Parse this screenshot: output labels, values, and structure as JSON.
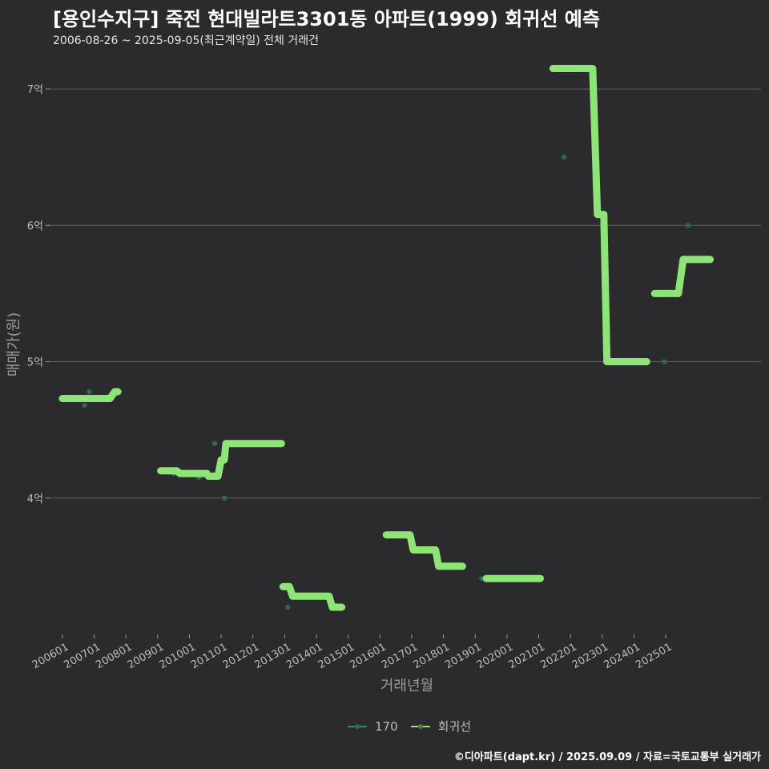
{
  "title": "[용인수지구] 죽전 현대빌라트3301동 아파트(1999) 회귀선 예측",
  "subtitle": "2006-08-26 ~ 2025-09-05(최근계약일) 전체 거래건",
  "footer": "©디아파트(dapt.kr) / 2025.09.09 / 자료=국토교통부 실거래가",
  "colors": {
    "background": "#2b2b2d",
    "grid": "#5f5f5f",
    "regression": "#8ee577",
    "points": "#2f6b5a",
    "legend_170": "#2a8c7f"
  },
  "chart_data": {
    "type": "line",
    "title": "[용인수지구] 죽전 현대빌라트3301동 아파트(1999) 회귀선 예측",
    "xlabel": "거래년월",
    "ylabel": "매매가(원)",
    "ylim": [
      3.0,
      7.3
    ],
    "y_ticks": [
      4,
      5,
      6,
      7
    ],
    "y_tick_labels": [
      "4억",
      "5억",
      "6억",
      "7억"
    ],
    "x_range": [
      2005.6,
      2028.0
    ],
    "x_ticks": [
      2006,
      2007,
      2008,
      2009,
      2010,
      2011,
      2012,
      2013,
      2014,
      2015,
      2016,
      2017,
      2018,
      2019,
      2020,
      2021,
      2022,
      2023,
      2024,
      2025
    ],
    "x_tick_labels": [
      "200601",
      "200701",
      "200801",
      "200901",
      "201001",
      "201101",
      "201201",
      "201301",
      "201401",
      "201501",
      "201601",
      "201701",
      "201801",
      "201901",
      "202001",
      "202101",
      "202201",
      "202301",
      "202401",
      "202501"
    ],
    "grid": true,
    "legend": {
      "position": "bottom",
      "entries": [
        "170",
        "회귀선"
      ]
    },
    "series": [
      {
        "name": "170",
        "type": "scatter",
        "points": [
          [
            2006.65,
            4.73
          ],
          [
            2006.7,
            4.68
          ],
          [
            2006.85,
            4.78
          ],
          [
            2007.2,
            4.73
          ],
          [
            2009.05,
            4.2
          ],
          [
            2009.5,
            4.18
          ],
          [
            2010.3,
            4.15
          ],
          [
            2010.8,
            4.4
          ],
          [
            2011.1,
            4.0
          ],
          [
            2012.9,
            3.35
          ],
          [
            2013.1,
            3.2
          ],
          [
            2019.2,
            3.41
          ],
          [
            2021.8,
            6.5
          ],
          [
            2023.1,
            5.0
          ],
          [
            2024.95,
            5.0
          ],
          [
            2025.7,
            6.0
          ]
        ]
      },
      {
        "name": "회귀선",
        "type": "step-line",
        "segments": [
          [
            [
              2006.0,
              4.73
            ],
            [
              2007.5,
              4.73
            ],
            [
              2007.65,
              4.78
            ],
            [
              2007.75,
              4.78
            ]
          ],
          [
            [
              2009.1,
              4.2
            ],
            [
              2009.6,
              4.2
            ],
            [
              2009.7,
              4.18
            ],
            [
              2010.55,
              4.18
            ],
            [
              2010.6,
              4.16
            ],
            [
              2010.9,
              4.16
            ],
            [
              2011.0,
              4.28
            ],
            [
              2011.1,
              4.28
            ],
            [
              2011.15,
              4.4
            ],
            [
              2012.9,
              4.4
            ]
          ],
          [
            [
              2012.95,
              3.35
            ],
            [
              2013.15,
              3.35
            ],
            [
              2013.25,
              3.28
            ],
            [
              2014.4,
              3.28
            ],
            [
              2014.5,
              3.2
            ],
            [
              2014.8,
              3.2
            ]
          ],
          [
            [
              2016.2,
              3.73
            ],
            [
              2016.95,
              3.73
            ],
            [
              2017.05,
              3.62
            ],
            [
              2017.75,
              3.62
            ],
            [
              2017.85,
              3.5
            ],
            [
              2018.6,
              3.5
            ]
          ],
          [
            [
              2019.35,
              3.41
            ],
            [
              2021.05,
              3.41
            ]
          ],
          [
            [
              2021.45,
              7.15
            ],
            [
              2022.7,
              7.15
            ],
            [
              2022.85,
              6.08
            ],
            [
              2023.05,
              6.08
            ],
            [
              2023.15,
              5.0
            ],
            [
              2024.4,
              5.0
            ]
          ],
          [
            [
              2024.65,
              5.5
            ],
            [
              2025.4,
              5.5
            ],
            [
              2025.55,
              5.75
            ],
            [
              2026.4,
              5.75
            ]
          ]
        ]
      }
    ]
  }
}
